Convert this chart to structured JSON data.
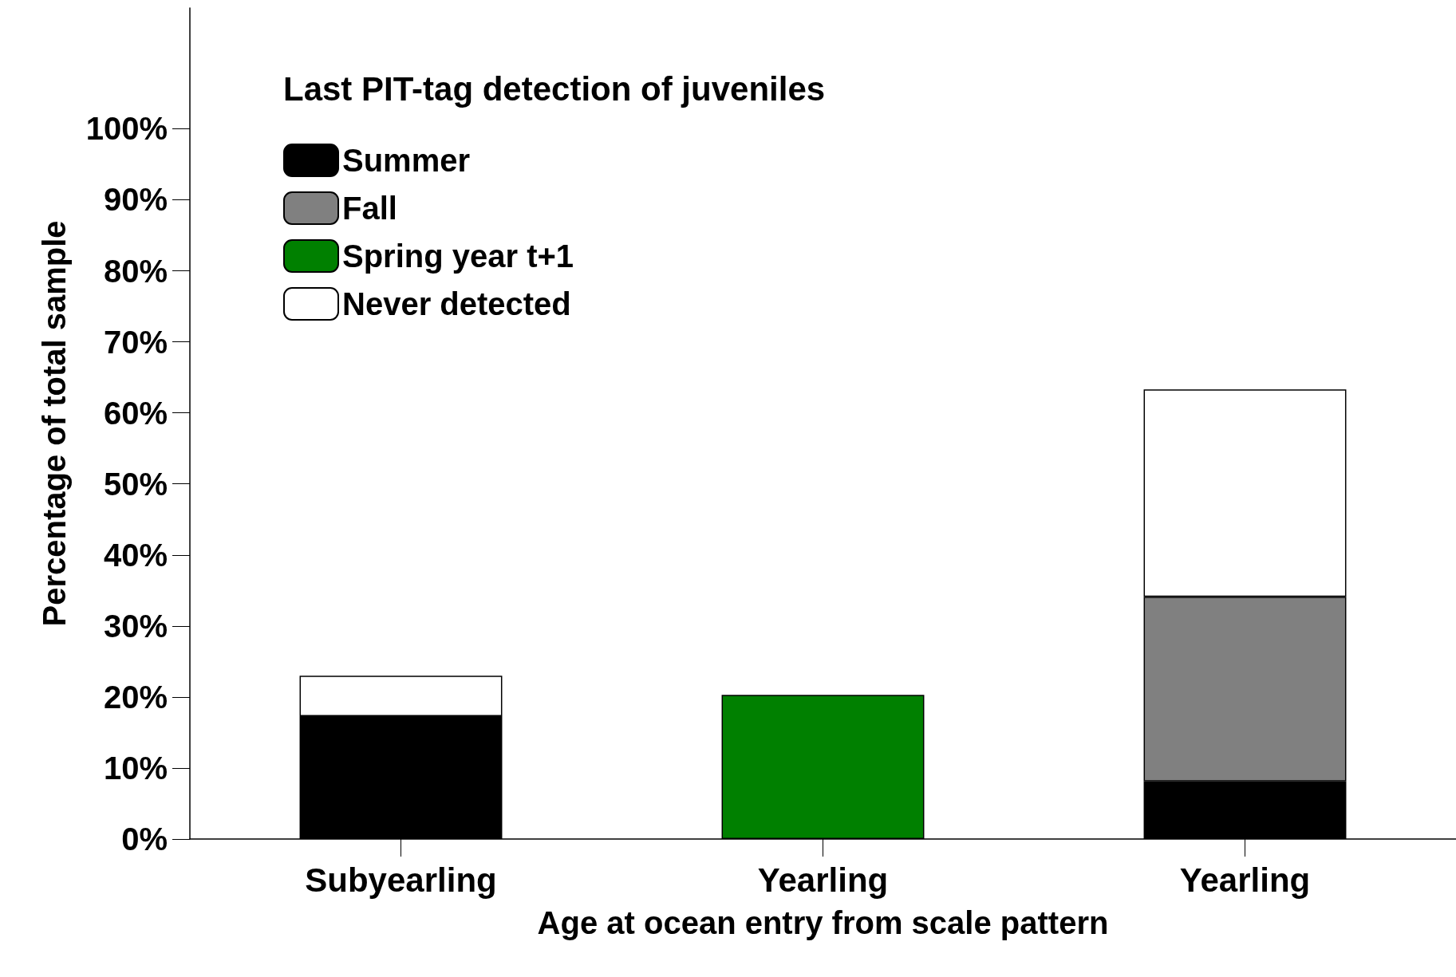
{
  "chart_data": {
    "type": "bar",
    "stacked": true,
    "xlabel": "Age at ocean entry from scale pattern",
    "ylabel": "Percentage of total sample",
    "legend_title": "Last PIT-tag detection of juveniles",
    "categories": [
      "Subyearling",
      "Yearling",
      "Yearling"
    ],
    "series": [
      {
        "name": "Summer",
        "color": "#000000",
        "values": [
          17.3,
          null,
          8.1
        ]
      },
      {
        "name": "Fall",
        "color": "#808080",
        "values": [
          null,
          null,
          26.0
        ]
      },
      {
        "name": "Spring year t+1",
        "color": "#008000",
        "values": [
          null,
          20.3,
          null
        ]
      },
      {
        "name": "Never detected",
        "color": "#ffffff",
        "values": [
          5.7,
          null,
          29.2
        ]
      }
    ],
    "ylim": [
      0,
      117
    ],
    "yticks": [
      {
        "value": 0,
        "label": "0%"
      },
      {
        "value": 10,
        "label": "10%"
      },
      {
        "value": 20,
        "label": "20%"
      },
      {
        "value": 30,
        "label": "30%"
      },
      {
        "value": 40,
        "label": "40%"
      },
      {
        "value": 50,
        "label": "50%"
      },
      {
        "value": 60,
        "label": "60%"
      },
      {
        "value": 70,
        "label": "70%"
      },
      {
        "value": 80,
        "label": "80%"
      },
      {
        "value": 90,
        "label": "90%"
      },
      {
        "value": 100,
        "label": "100%"
      }
    ],
    "grid": false,
    "legend": "top left"
  }
}
